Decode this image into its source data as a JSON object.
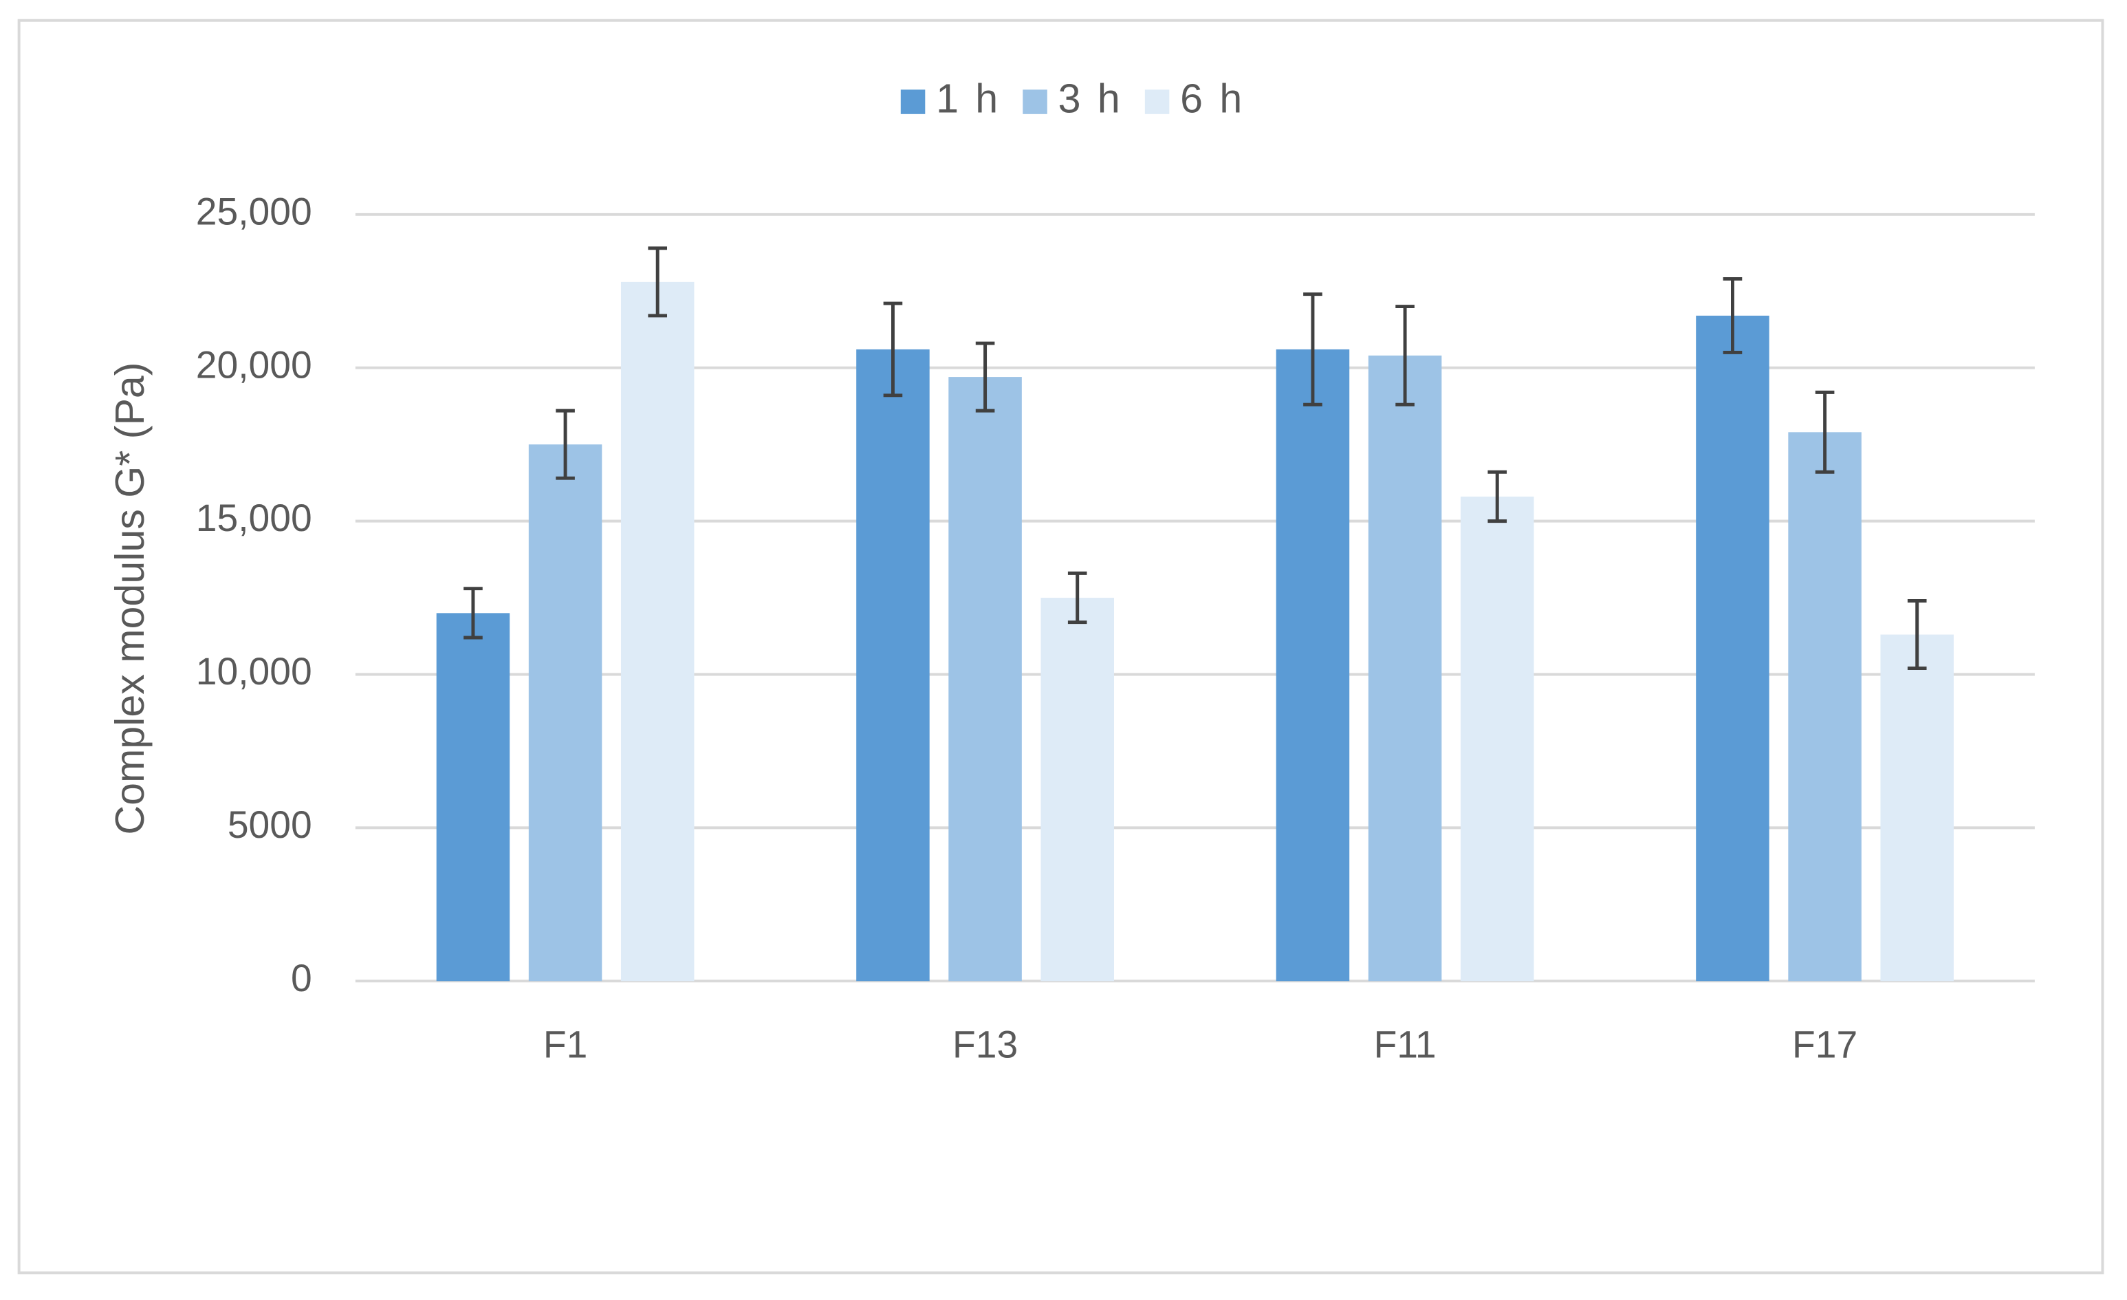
{
  "chart_data": {
    "type": "bar",
    "y_label": "Complex modulus G* (Pa)",
    "categories": [
      "F1",
      "F13",
      "F11",
      "F17"
    ],
    "series": [
      {
        "name": "1 h",
        "color": "#5b9bd5",
        "values": [
          12000,
          20600,
          20600,
          21700
        ],
        "errors": [
          800,
          1500,
          1800,
          1200
        ]
      },
      {
        "name": "3 h",
        "color": "#9dc3e6",
        "values": [
          17500,
          19700,
          20400,
          17900
        ],
        "errors": [
          1100,
          1100,
          1600,
          1300
        ]
      },
      {
        "name": "6 h",
        "color": "#deebf7",
        "values": [
          22800,
          12500,
          15800,
          11300
        ],
        "errors": [
          1100,
          800,
          800,
          1100
        ]
      }
    ],
    "ylim": [
      0,
      25000
    ],
    "yticks": [
      0,
      5000,
      {
        "value": 10000,
        "label": "10,000"
      },
      {
        "value": 15000,
        "label": "15,000"
      },
      {
        "value": 20000,
        "label": "20,000"
      },
      {
        "value": 25000,
        "label": "25,000"
      }
    ],
    "grid": true,
    "legend": "top"
  }
}
